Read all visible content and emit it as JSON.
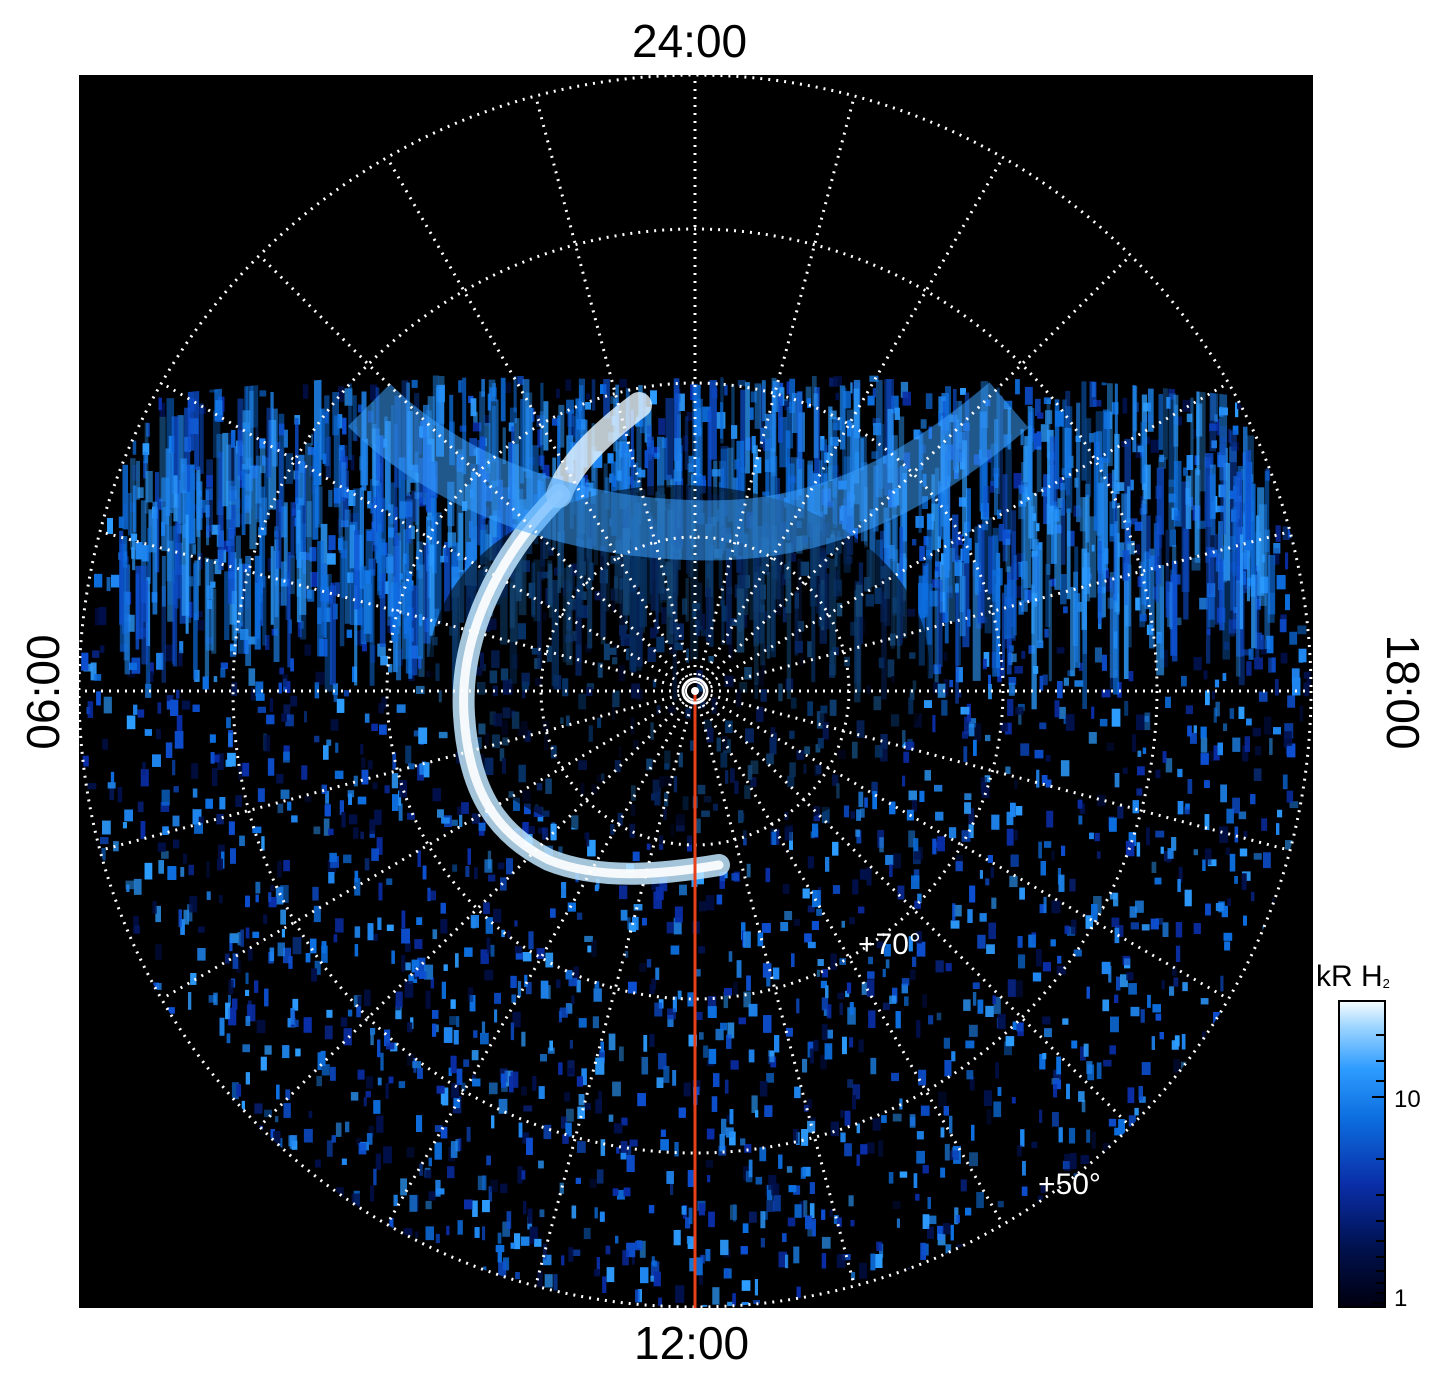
{
  "figure": {
    "local_time_labels": {
      "top": "24:00",
      "bottom": "12:00",
      "left": "06:00",
      "right": "18:00"
    },
    "latitude_labels": {
      "inner": "+70°",
      "outer": "+50°"
    },
    "colorbar": {
      "title": "kR H",
      "title_subscript": "2",
      "tick_labels": [
        "10",
        "1"
      ],
      "colors": [
        "#000010",
        "#00104a",
        "#0a2ea8",
        "#0d6fe0",
        "#2d9cff",
        "#9fd6ff",
        "#f3fbff"
      ]
    },
    "meridian_color": "#e8401a",
    "grid_color": "#ffffff"
  }
}
